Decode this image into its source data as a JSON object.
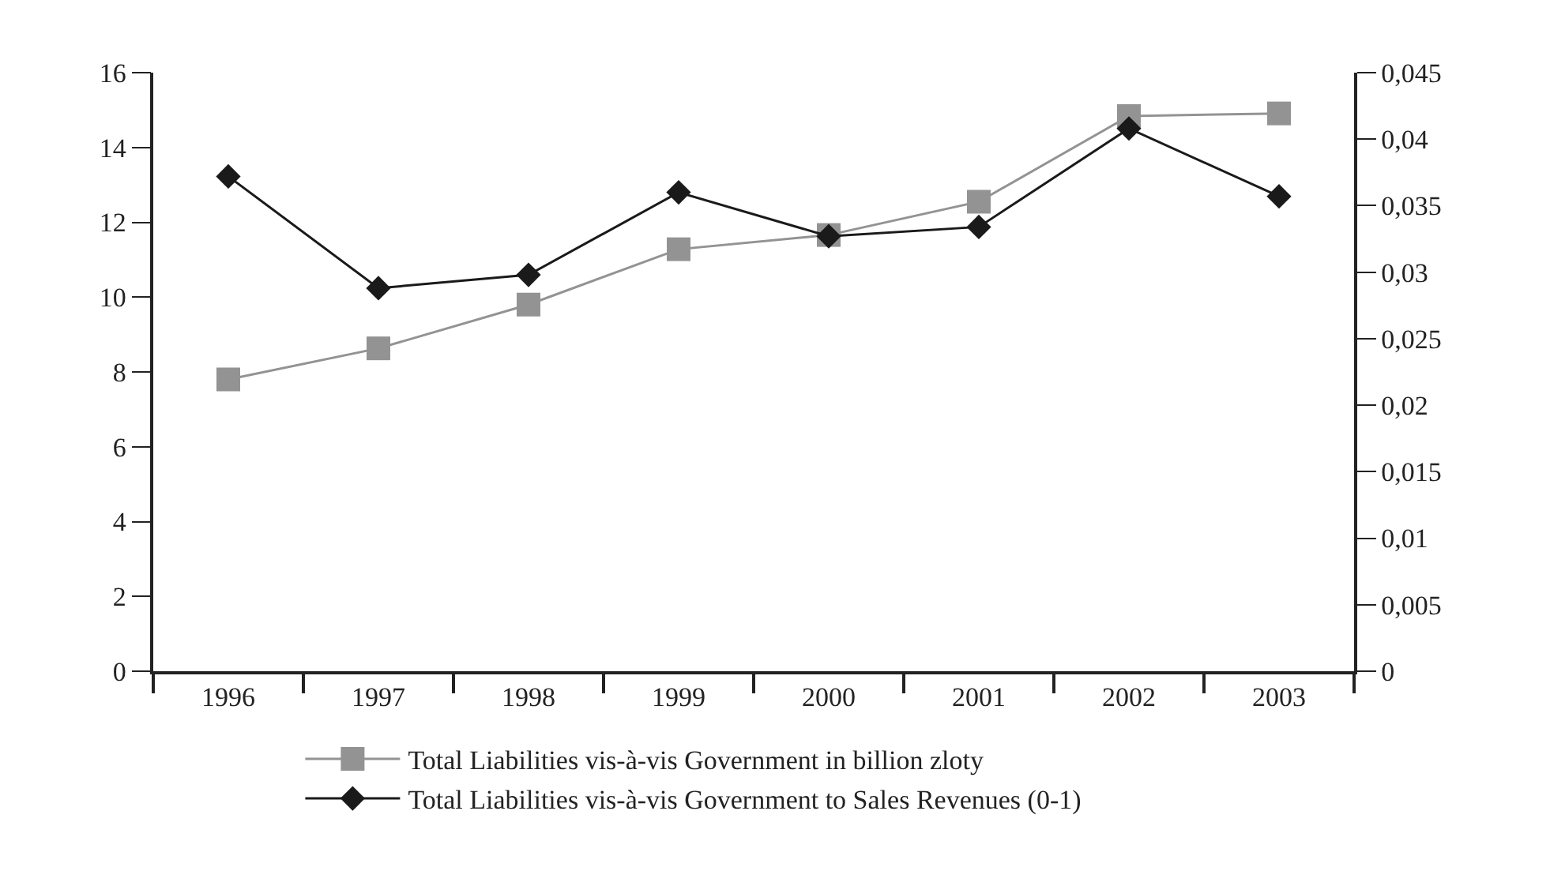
{
  "chart_data": {
    "type": "line",
    "categories": [
      "1996",
      "1997",
      "1998",
      "1999",
      "2000",
      "2001",
      "2002",
      "2003"
    ],
    "series": [
      {
        "name": "Total Liabilities vis-à-vis Government in billion zloty",
        "color": "#939393",
        "marker": "square",
        "values": [
          7.8,
          8.63,
          9.8,
          11.28,
          11.66,
          12.55,
          14.84,
          14.91
        ]
      },
      {
        "name": "Total Liabilities vis-à-vis Government to Sales Revenues (0-1)",
        "color": "#1a1a1a",
        "marker": "diamond",
        "axis": "y2",
        "values": [
          0.0372,
          0.0288,
          0.0298,
          0.036,
          0.0327,
          0.0334,
          0.0408,
          0.0357
        ]
      }
    ],
    "ylim": [
      0,
      16
    ],
    "yticks": [
      0,
      2,
      4,
      6,
      8,
      10,
      12,
      14,
      16
    ],
    "y2lim": [
      0,
      0.045
    ],
    "y2ticks": [
      0,
      {
        "value": 0.005,
        "label": "0,005"
      },
      {
        "value": 0.01,
        "label": "0,01"
      },
      {
        "value": 0.015,
        "label": "0,015"
      },
      {
        "value": 0.02,
        "label": "0,02"
      },
      {
        "value": 0.025,
        "label": "0,025"
      },
      {
        "value": 0.03,
        "label": "0,03"
      },
      {
        "value": 0.035,
        "label": "0,035"
      },
      {
        "value": 0.04,
        "label": "0,04"
      },
      {
        "value": 0.045,
        "label": "0,045"
      }
    ],
    "grid": false,
    "legend": "bottom",
    "line_style": "solid"
  }
}
